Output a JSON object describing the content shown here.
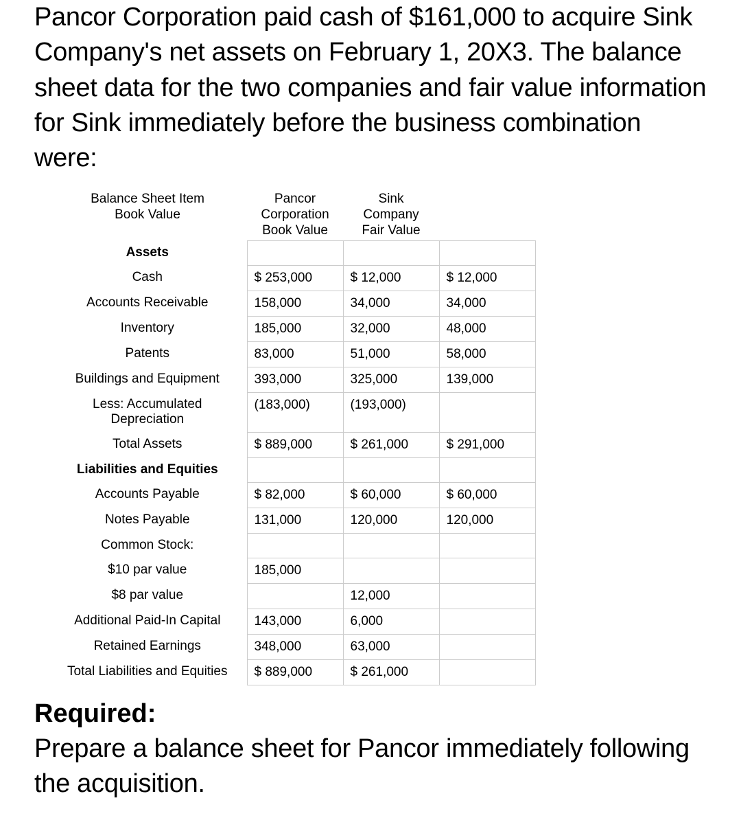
{
  "intro": "Pancor Corporation paid cash of $161,000 to acquire Sink Company's net assets on February 1, 20X3. The balance sheet data for the two companies and fair value information for Sink immediately before the business combination were:",
  "headers": {
    "col1_line1": "Balance Sheet Item",
    "col1_line2": "Book Value",
    "col2_line1": "Pancor Corporation",
    "col2_line2": "Book Value",
    "col3_line1": "Sink Company",
    "col3_line2": "Fair Value"
  },
  "sections": {
    "assets": "Assets",
    "liabilities": "Liabilities and Equities"
  },
  "rows": {
    "cash": {
      "label": "Cash",
      "pancor": "$ 253,000",
      "sink": "$ 12,000",
      "fair": "$ 12,000"
    },
    "ar": {
      "label": "Accounts Receivable",
      "pancor": "158,000",
      "sink": "34,000",
      "fair": "34,000"
    },
    "inventory": {
      "label": "Inventory",
      "pancor": "185,000",
      "sink": "32,000",
      "fair": "48,000"
    },
    "patents": {
      "label": "Patents",
      "pancor": "83,000",
      "sink": "51,000",
      "fair": "58,000"
    },
    "buildings": {
      "label": "Buildings and Equipment",
      "pancor": "393,000",
      "sink": "325,000",
      "fair": "139,000"
    },
    "accdep": {
      "label": "Less: Accumulated Depreciation",
      "pancor": "(183,000)",
      "sink": "(193,000)",
      "fair": ""
    },
    "totalassets": {
      "label": "Total Assets",
      "pancor": "$ 889,000",
      "sink": "$ 261,000",
      "fair": "$ 291,000"
    },
    "ap": {
      "label": "Accounts Payable",
      "pancor": "$ 82,000",
      "sink": "$ 60,000",
      "fair": "$ 60,000"
    },
    "np": {
      "label": "Notes Payable",
      "pancor": "131,000",
      "sink": "120,000",
      "fair": "120,000"
    },
    "commonstock": {
      "label": "Common Stock:"
    },
    "par10": {
      "label": "$10 par value",
      "pancor": "185,000",
      "sink": "",
      "fair": ""
    },
    "par8": {
      "label": "$8 par value",
      "pancor": "",
      "sink": "12,000",
      "fair": ""
    },
    "apic": {
      "label": "Additional Paid-In Capital",
      "pancor": "143,000",
      "sink": "6,000",
      "fair": ""
    },
    "re": {
      "label": "Retained Earnings",
      "pancor": "348,000",
      "sink": "63,000",
      "fair": ""
    },
    "totalliab": {
      "label": "Total Liabilities and Equities",
      "pancor": "$ 889,000",
      "sink": "$ 261,000",
      "fair": ""
    }
  },
  "required": {
    "heading": "Required:",
    "text": "Prepare a balance sheet for Pancor immediately following the acquisition."
  }
}
